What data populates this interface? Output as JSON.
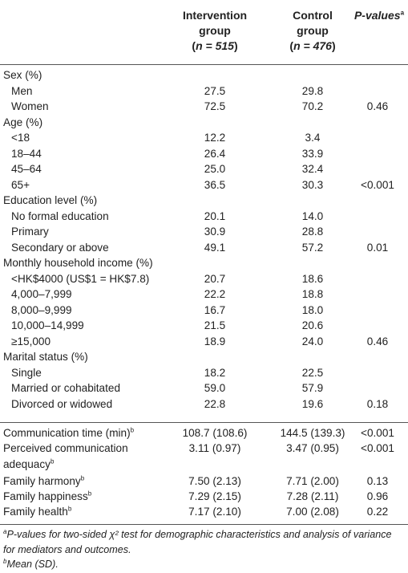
{
  "headers": {
    "intervention_l1": "Intervention",
    "intervention_l2": "group",
    "intervention_n": "n = 515",
    "control_l1": "Control",
    "control_l2": "group",
    "control_n": "n = 476",
    "pvalues": "P-values",
    "pvalues_sup": "a"
  },
  "rows": [
    {
      "label": "Sex (%)",
      "indent": false,
      "c1": "",
      "c2": "",
      "c3": ""
    },
    {
      "label": "Men",
      "indent": true,
      "c1": "27.5",
      "c2": "29.8",
      "c3": ""
    },
    {
      "label": "Women",
      "indent": true,
      "c1": "72.5",
      "c2": "70.2",
      "c3": "0.46"
    },
    {
      "label": "Age (%)",
      "indent": false,
      "c1": "",
      "c2": "",
      "c3": ""
    },
    {
      "label": "<18",
      "indent": true,
      "c1": "12.2",
      "c2": "3.4",
      "c3": ""
    },
    {
      "label": "18–44",
      "indent": true,
      "c1": "26.4",
      "c2": "33.9",
      "c3": ""
    },
    {
      "label": "45–64",
      "indent": true,
      "c1": "25.0",
      "c2": "32.4",
      "c3": ""
    },
    {
      "label": "65+",
      "indent": true,
      "c1": "36.5",
      "c2": "30.3",
      "c3": "<0.001"
    },
    {
      "label": "Education level (%)",
      "indent": false,
      "c1": "",
      "c2": "",
      "c3": ""
    },
    {
      "label": "No formal education",
      "indent": true,
      "c1": "20.1",
      "c2": "14.0",
      "c3": ""
    },
    {
      "label": "Primary",
      "indent": true,
      "c1": "30.9",
      "c2": "28.8",
      "c3": ""
    },
    {
      "label": "Secondary or above",
      "indent": true,
      "c1": "49.1",
      "c2": "57.2",
      "c3": "0.01"
    },
    {
      "label": "Monthly household income (%)",
      "indent": false,
      "c1": "",
      "c2": "",
      "c3": ""
    },
    {
      "label": "<HK$4000 (US$1 = HK$7.8)",
      "indent": true,
      "c1": "20.7",
      "c2": "18.6",
      "c3": ""
    },
    {
      "label": "4,000–7,999",
      "indent": true,
      "c1": "22.2",
      "c2": "18.8",
      "c3": ""
    },
    {
      "label": "8,000–9,999",
      "indent": true,
      "c1": "16.7",
      "c2": "18.0",
      "c3": ""
    },
    {
      "label": "10,000–14,999",
      "indent": true,
      "c1": "21.5",
      "c2": "20.6",
      "c3": ""
    },
    {
      "label": "≥15,000",
      "indent": true,
      "c1": "18.9",
      "c2": "24.0",
      "c3": "0.46"
    },
    {
      "label": "Marital status (%)",
      "indent": false,
      "c1": "",
      "c2": "",
      "c3": ""
    },
    {
      "label": "Single",
      "indent": true,
      "c1": "18.2",
      "c2": "22.5",
      "c3": ""
    },
    {
      "label": "Married or cohabitated",
      "indent": true,
      "c1": "59.0",
      "c2": "57.9",
      "c3": ""
    },
    {
      "label": "Divorced or widowed",
      "indent": true,
      "c1": "22.8",
      "c2": "19.6",
      "c3": "0.18"
    }
  ],
  "rows2": [
    {
      "label": "Communication time (min)",
      "sup": "b",
      "label2": "",
      "c1": "108.7 (108.6)",
      "c2": "144.5 (139.3)",
      "c3": "<0.001"
    },
    {
      "label": "Perceived communication",
      "sup": "",
      "label2": "adequacy",
      "sup2": "b",
      "c1": "3.11 (0.97)",
      "c2": "3.47 (0.95)",
      "c3": "<0.001"
    },
    {
      "label": "Family harmony",
      "sup": "b",
      "label2": "",
      "c1": "7.50 (2.13)",
      "c2": "7.71 (2.00)",
      "c3": "0.13"
    },
    {
      "label": "Family happiness",
      "sup": "b",
      "label2": "",
      "c1": "7.29 (2.15)",
      "c2": "7.28 (2.11)",
      "c3": "0.96"
    },
    {
      "label": "Family health",
      "sup": "b",
      "label2": "",
      "c1": "7.17 (2.10)",
      "c2": "7.00 (2.08)",
      "c3": "0.22"
    }
  ],
  "footnotes": {
    "a_mark": "a",
    "a_text": "P-values for two-sided χ² test for demographic characteristics and analysis of variance for mediators and outcomes.",
    "b_mark": "b",
    "b_text": "Mean (SD)."
  }
}
